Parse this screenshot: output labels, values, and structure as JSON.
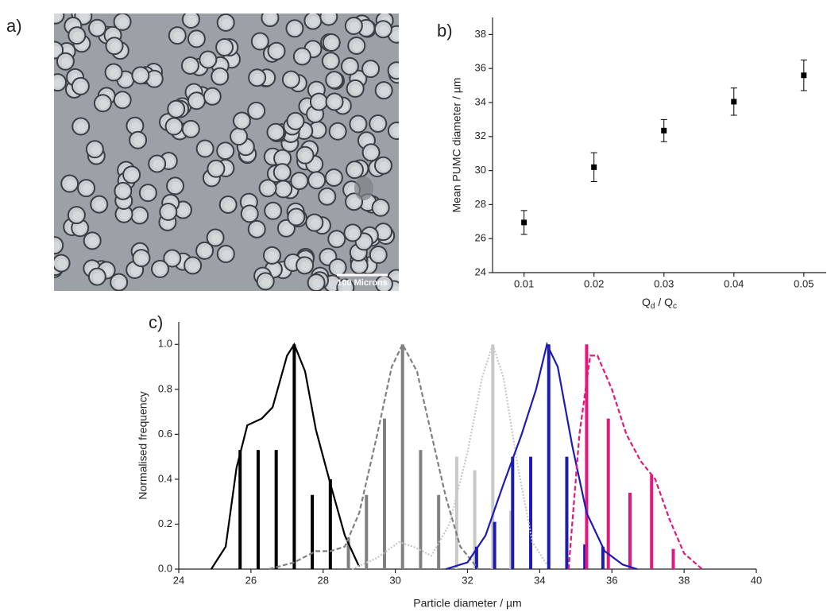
{
  "panels": [
    "a)",
    "b)",
    "c)"
  ],
  "image": {
    "scale_bar": "100 Microns"
  },
  "chart_data": [
    {
      "type": "scatter",
      "xlabel": [
        "Q",
        "d",
        " / Q",
        "c"
      ],
      "ylabel": "Mean PUMC diameter / µm",
      "x": [
        0.01,
        0.02,
        0.03,
        0.04,
        0.05
      ],
      "values": [
        26.95,
        30.2,
        32.35,
        34.05,
        35.6
      ],
      "errors": [
        0.7,
        0.85,
        0.65,
        0.8,
        0.9
      ],
      "color": "#000000",
      "xlim": [
        0.0055,
        0.0532
      ],
      "ylim": [
        24,
        39
      ],
      "xticks": [
        0.01,
        0.02,
        0.03,
        0.04,
        0.05
      ],
      "yticks": [
        24,
        26,
        28,
        30,
        32,
        34,
        36,
        38
      ]
    },
    {
      "type": "histogram",
      "xlabel": "Particle diameter / µm",
      "ylabel": "Normalised frequency",
      "xlim": [
        24,
        40
      ],
      "ylim": [
        0,
        1.1
      ],
      "xticks": [
        24,
        26,
        28,
        30,
        32,
        34,
        36,
        38,
        40
      ],
      "yticks": [
        {
          "value": 0,
          "label": "0.0"
        },
        0.2,
        0.4,
        0.6,
        0.8,
        {
          "value": 1,
          "label": "1.0"
        }
      ],
      "series": [
        {
          "color": "#000000",
          "line_style": "solid",
          "x": [
            25.7,
            26.2,
            26.7,
            27.2,
            27.7,
            28.2
          ],
          "values": [
            0.53,
            0.53,
            0.53,
            1.0,
            0.33,
            0.4
          ],
          "curve_x": [
            24.9,
            25.3,
            25.6,
            25.9,
            26.3,
            26.6,
            27.0,
            27.2,
            27.5,
            27.8,
            28.2,
            28.6,
            29.0
          ],
          "curve_y": [
            0,
            0.1,
            0.45,
            0.64,
            0.67,
            0.72,
            0.95,
            1.0,
            0.88,
            0.62,
            0.38,
            0.15,
            0.01
          ]
        },
        {
          "color": "#808080",
          "line_style": "dashed",
          "x": [
            28.7,
            29.2,
            29.7,
            30.2,
            30.7,
            31.2
          ],
          "values": [
            0.14,
            0.33,
            0.67,
            1.0,
            0.53,
            0.33
          ],
          "curve_x": [
            26.5,
            27.2,
            27.8,
            28.2,
            28.6,
            29.0,
            29.5,
            29.9,
            30.2,
            30.6,
            31.0,
            31.4,
            31.8,
            32.3
          ],
          "curve_y": [
            0,
            0.03,
            0.08,
            0.08,
            0.1,
            0.25,
            0.6,
            0.9,
            1.0,
            0.88,
            0.6,
            0.32,
            0.1,
            0
          ]
        },
        {
          "color": "#c8c8c8",
          "line_style": "dotted",
          "x": [
            31.7,
            32.2,
            32.7,
            33.2
          ],
          "values": [
            0.5,
            0.44,
            1.0,
            0.26
          ],
          "curve_x": [
            28.8,
            29.5,
            30.1,
            30.5,
            31.0,
            31.5,
            32.0,
            32.4,
            32.7,
            33.0,
            33.4,
            33.8,
            34.2
          ],
          "curve_y": [
            0,
            0.05,
            0.12,
            0.1,
            0.06,
            0.2,
            0.52,
            0.85,
            1.0,
            0.85,
            0.45,
            0.12,
            0.02
          ]
        },
        {
          "color": "#1c1cb0",
          "line_style": "solid",
          "x": [
            32.25,
            32.75,
            33.25,
            33.75,
            34.25,
            34.75,
            35.25,
            35.75
          ],
          "values": [
            0.1,
            0.21,
            0.5,
            0.5,
            1.0,
            0.5,
            0.11,
            0.1
          ],
          "curve_x": [
            31.4,
            32.0,
            32.5,
            33.0,
            33.5,
            33.9,
            34.2,
            34.5,
            34.9,
            35.3,
            35.8,
            36.3,
            36.7
          ],
          "curve_y": [
            0,
            0.03,
            0.15,
            0.38,
            0.6,
            0.8,
            1.0,
            0.9,
            0.55,
            0.25,
            0.08,
            0.02,
            0
          ]
        },
        {
          "color": "#e0197d",
          "line_style": "dashed",
          "x": [
            35.3,
            35.9,
            36.5,
            37.1,
            37.7
          ],
          "values": [
            1.0,
            0.67,
            0.34,
            0.42,
            0.09
          ],
          "curve_x": [
            34.8,
            35.1,
            35.4,
            35.6,
            36.0,
            36.4,
            36.8,
            37.2,
            37.6,
            38.0,
            38.5
          ],
          "curve_y": [
            0,
            0.6,
            0.95,
            0.95,
            0.8,
            0.6,
            0.48,
            0.4,
            0.22,
            0.07,
            0
          ]
        }
      ]
    }
  ]
}
